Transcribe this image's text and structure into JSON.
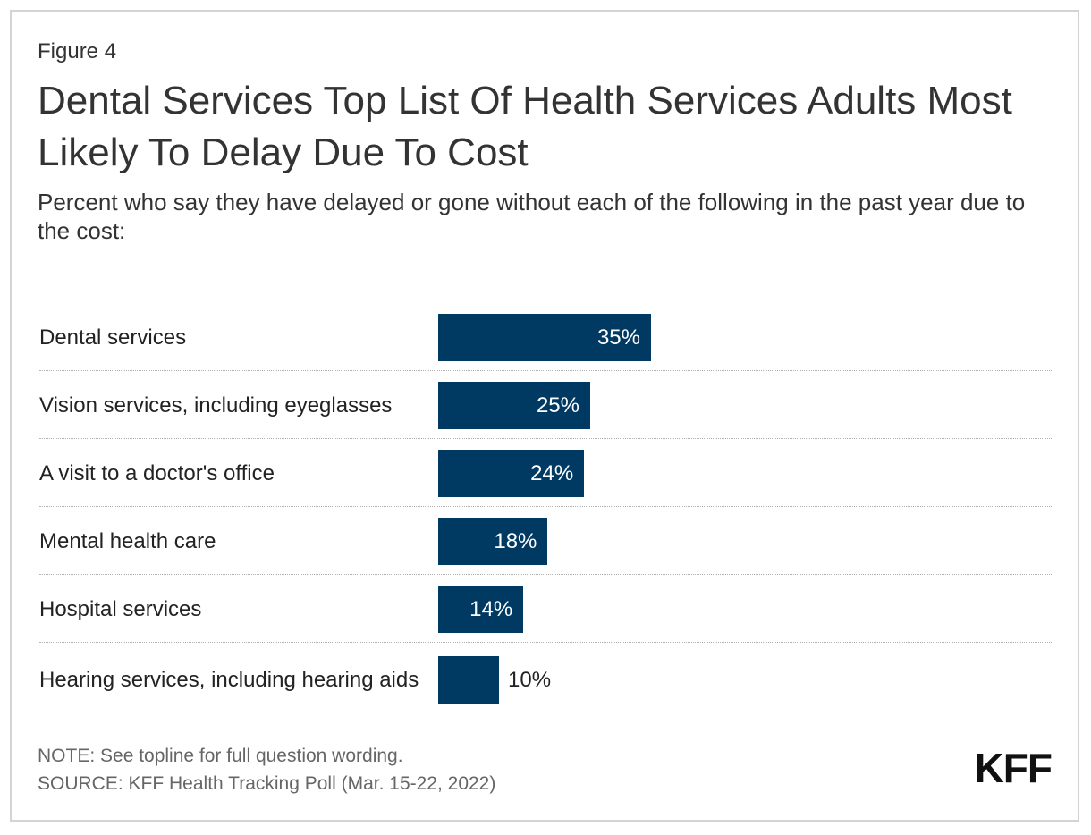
{
  "chart_data": {
    "type": "bar",
    "orientation": "horizontal",
    "figure_label": "Figure 4",
    "title": "Dental Services Top List Of Health Services Adults Most Likely To Delay Due To Cost",
    "subtitle": "Percent who say they have delayed or gone without each of the following in the past year due to the cost:",
    "categories": [
      "Dental services",
      "Vision services, including eyeglasses",
      "A visit to a doctor's office",
      "Mental health care",
      "Hospital services",
      "Hearing services, including hearing aids"
    ],
    "values": [
      35,
      25,
      24,
      18,
      14,
      10
    ],
    "value_labels": [
      "35%",
      "25%",
      "24%",
      "18%",
      "14%",
      "10%"
    ],
    "color": "#003a63",
    "note": "NOTE: See topline for full question wording.",
    "source": "SOURCE: KFF Health Tracking Poll (Mar. 15-22, 2022)",
    "logo": "KFF"
  }
}
